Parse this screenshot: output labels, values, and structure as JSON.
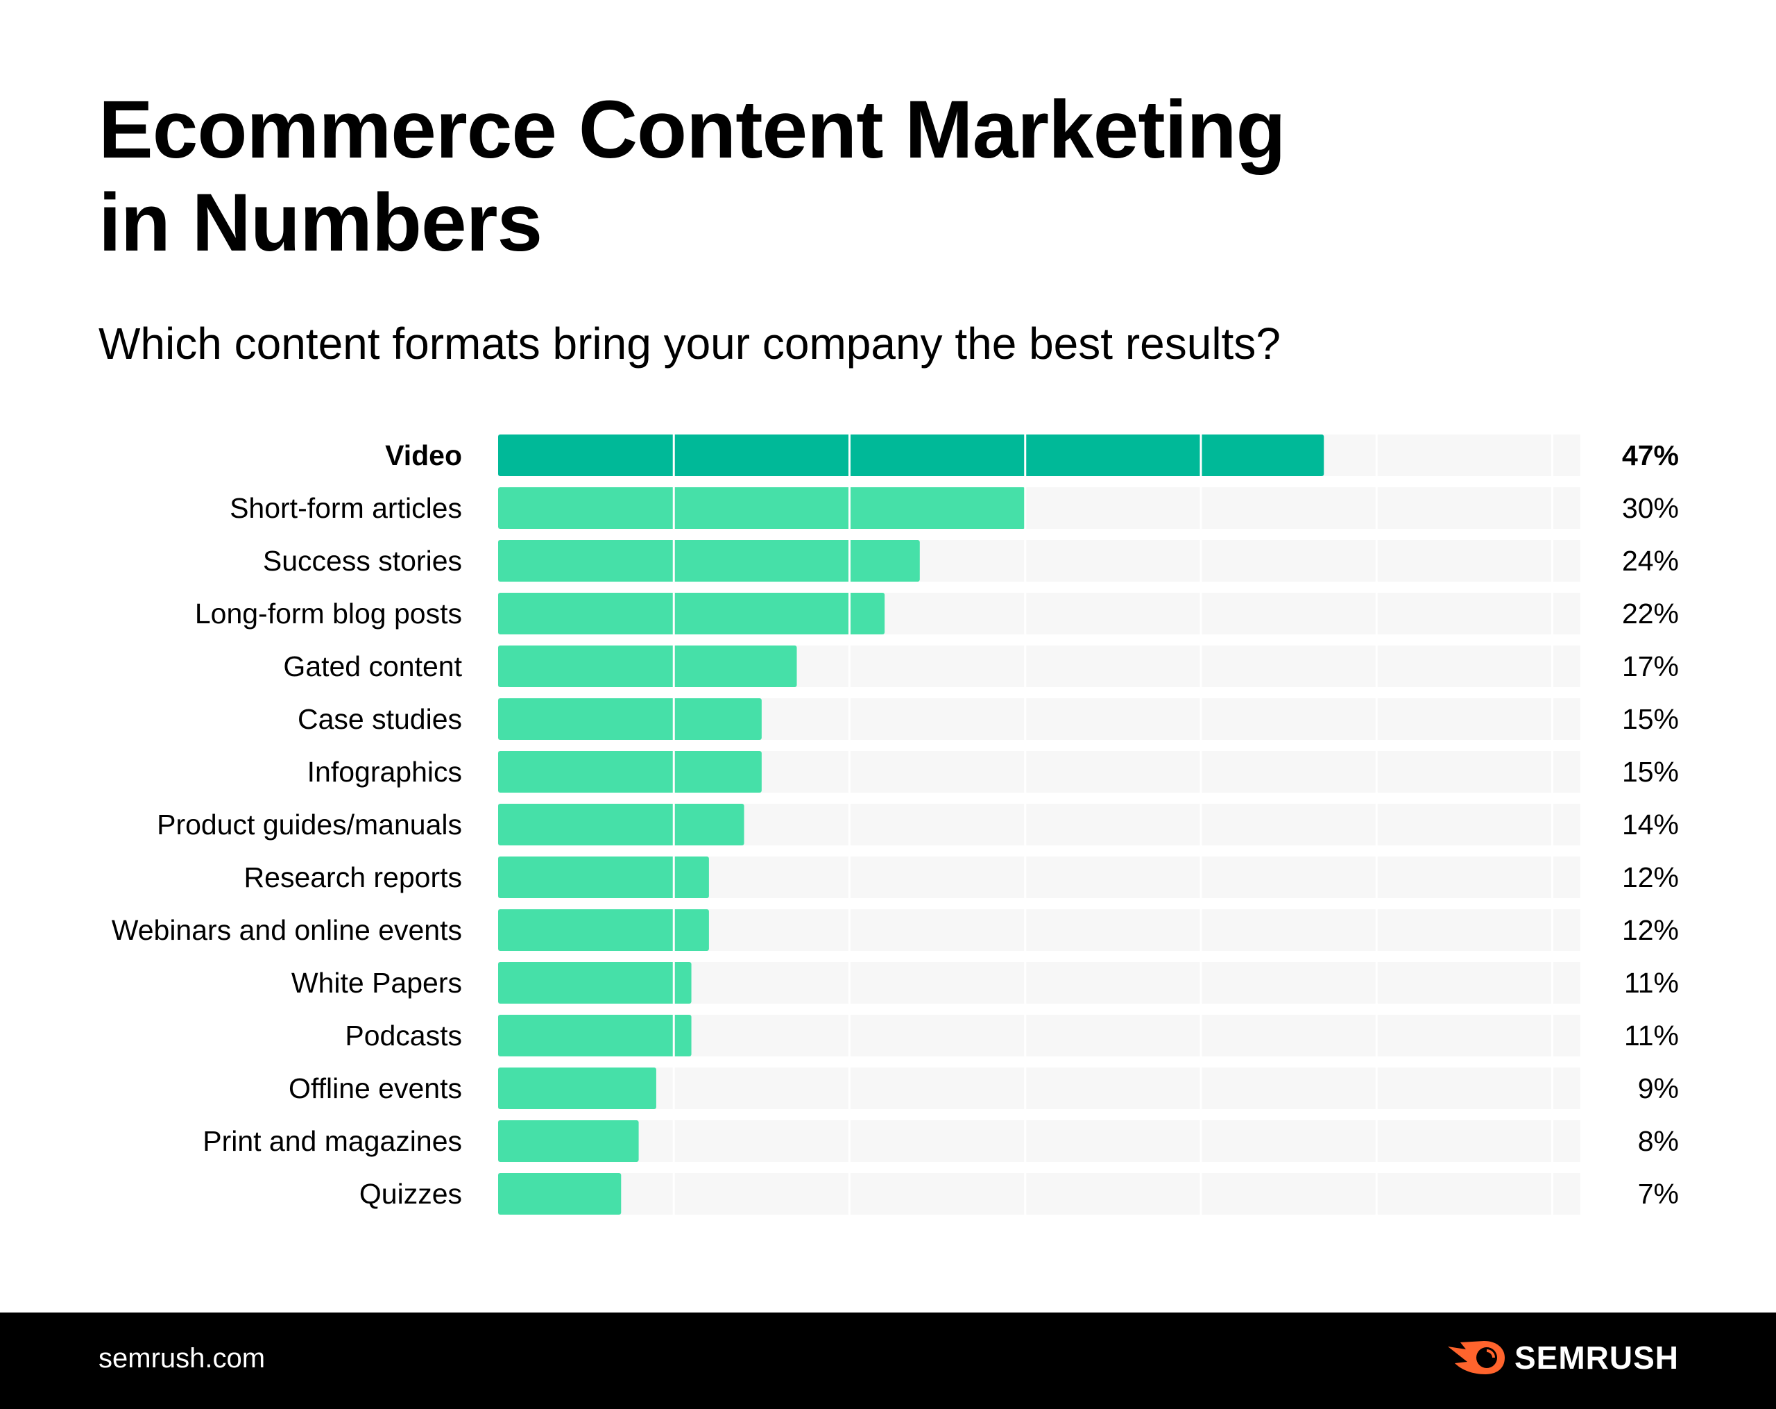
{
  "title": "Ecommerce Content Marketing in Numbers",
  "subtitle": "Which content formats bring your company the best results?",
  "chart_data": {
    "type": "bar",
    "orientation": "horizontal",
    "question": "Which content formats bring your company the best results?",
    "categories": [
      "Video",
      "Short-form articles",
      "Success stories",
      "Long-form blog posts",
      "Gated content",
      "Case studies",
      "Infographics",
      "Product guides/manuals",
      "Research reports",
      "Webinars and online events",
      "White Papers",
      "Podcasts",
      "Offline events",
      "Print and magazines",
      "Quizzes"
    ],
    "values": [
      47,
      30,
      24,
      22,
      17,
      15,
      15,
      14,
      12,
      12,
      11,
      11,
      9,
      8,
      7
    ],
    "value_labels": [
      "47%",
      "30%",
      "24%",
      "22%",
      "17%",
      "15%",
      "15%",
      "14%",
      "12%",
      "12%",
      "11%",
      "11%",
      "9%",
      "8%",
      "7%"
    ],
    "unit": "%",
    "xlim": [
      0,
      61.6
    ],
    "grid": true,
    "grid_step": 10,
    "highlight_index": 0,
    "colors": {
      "highlight": "#00b998",
      "bar": "#46e0a8",
      "track": "#f7f7f7",
      "grid": "#ffffff"
    }
  },
  "footer": {
    "site": "semrush.com",
    "logo_text": "SEMRUSH",
    "logo_color": "#ff642d"
  }
}
